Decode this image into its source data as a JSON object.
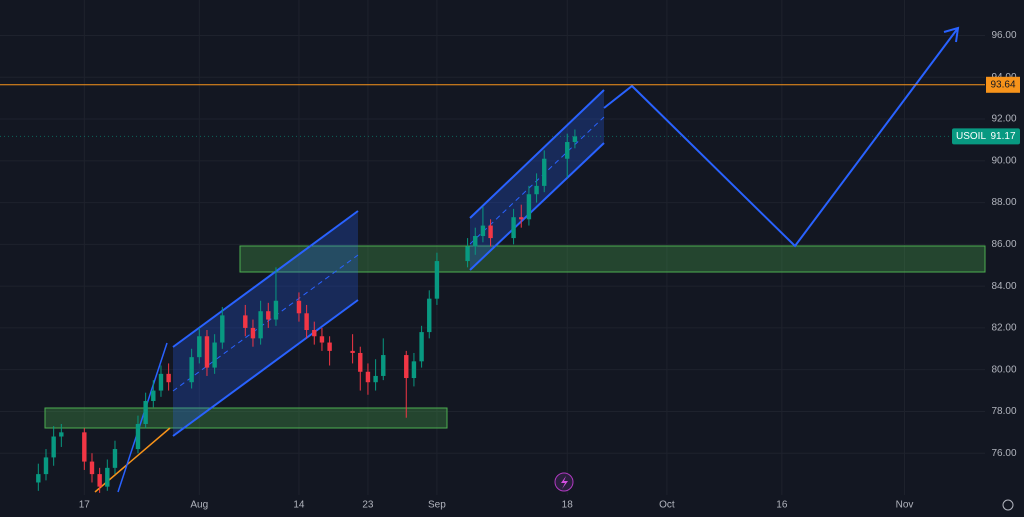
{
  "chart_data": {
    "type": "candlestick",
    "symbol": "USOIL",
    "last_price": 91.17,
    "level": 93.64,
    "x": [
      11,
      12,
      13,
      14,
      17,
      18,
      19,
      20,
      21,
      24,
      25,
      26,
      27,
      28,
      31,
      32,
      33,
      34,
      35,
      38,
      39,
      40,
      41,
      42,
      45,
      46,
      47,
      48,
      49,
      52,
      53,
      54,
      55,
      56,
      59,
      60,
      61,
      62,
      63,
      67,
      68,
      69,
      70,
      73,
      74,
      75,
      76,
      77,
      80,
      81
    ],
    "open": [
      74.6,
      75.0,
      75.8,
      76.8,
      77.0,
      75.6,
      75.0,
      74.4,
      75.3,
      76.2,
      77.4,
      78.5,
      79.0,
      79.8,
      79.4,
      80.6,
      81.6,
      80.1,
      81.3,
      82.6,
      82.0,
      81.5,
      82.8,
      82.4,
      83.3,
      82.7,
      81.9,
      81.6,
      81.3,
      80.9,
      80.8,
      79.9,
      79.4,
      79.7,
      80.7,
      79.6,
      80.4,
      81.8,
      83.4,
      85.2,
      85.9,
      86.4,
      86.9,
      86.3,
      87.3,
      87.2,
      88.4,
      88.8,
      90.1,
      90.9
    ],
    "high": [
      75.5,
      76.2,
      77.3,
      77.4,
      77.2,
      76.0,
      75.3,
      75.7,
      76.6,
      77.8,
      78.9,
      79.5,
      80.2,
      80.3,
      81.0,
      82.0,
      81.9,
      81.7,
      83.0,
      83.1,
      82.4,
      83.3,
      83.2,
      84.9,
      83.7,
      83.1,
      82.3,
      82.0,
      81.6,
      81.7,
      81.1,
      80.3,
      80.5,
      81.5,
      80.9,
      80.8,
      82.1,
      83.8,
      85.6,
      86.3,
      86.8,
      87.8,
      87.2,
      87.7,
      87.9,
      88.8,
      89.4,
      90.5,
      91.3,
      91.5
    ],
    "low": [
      74.2,
      74.7,
      75.4,
      76.3,
      75.2,
      74.6,
      74.1,
      74.2,
      75.0,
      76.0,
      77.2,
      78.2,
      78.7,
      79.0,
      79.1,
      80.3,
      79.7,
      79.8,
      81.0,
      81.6,
      81.1,
      81.2,
      82.0,
      82.1,
      82.3,
      81.5,
      81.2,
      80.9,
      80.2,
      80.3,
      79.0,
      78.8,
      79.0,
      79.5,
      77.7,
      79.2,
      80.1,
      81.5,
      83.1,
      84.9,
      85.5,
      86.1,
      85.9,
      86.0,
      86.8,
      86.9,
      88.0,
      88.5,
      89.2,
      90.6
    ],
    "close": [
      75.0,
      75.8,
      76.8,
      77.0,
      75.6,
      75.0,
      74.4,
      75.3,
      76.2,
      77.4,
      78.5,
      79.0,
      79.8,
      79.4,
      80.6,
      81.6,
      80.1,
      81.3,
      82.6,
      82.0,
      81.5,
      82.8,
      82.4,
      83.3,
      82.7,
      81.9,
      81.6,
      81.3,
      80.9,
      80.8,
      79.9,
      79.4,
      79.7,
      80.7,
      79.6,
      80.4,
      81.8,
      83.4,
      85.2,
      85.9,
      86.4,
      86.9,
      86.3,
      87.3,
      87.2,
      88.4,
      88.8,
      90.1,
      90.9,
      91.17
    ],
    "up_color": "#089981",
    "down_color": "#f23645",
    "level_color": "#f7931a",
    "xlim": [
      6,
      134.5
    ],
    "xticks": [
      {
        "value": 17,
        "label": "17"
      },
      {
        "value": 32,
        "label": "Aug"
      },
      {
        "value": 45,
        "label": "14"
      },
      {
        "value": 54,
        "label": "23"
      },
      {
        "value": 63,
        "label": "Sep"
      },
      {
        "value": 80,
        "label": "18"
      },
      {
        "value": 93,
        "label": "Oct"
      },
      {
        "value": 108,
        "label": "16"
      },
      {
        "value": 124,
        "label": "Nov"
      }
    ],
    "ylim": [
      74.0,
      97.7
    ],
    "yticks": [
      {
        "value": 76,
        "label": "76.00"
      },
      {
        "value": 78,
        "label": "78.00"
      },
      {
        "value": 80,
        "label": "80.00"
      },
      {
        "value": 82,
        "label": "82.00"
      },
      {
        "value": 84,
        "label": "84.00"
      },
      {
        "value": 86,
        "label": "86.00"
      },
      {
        "value": 88,
        "label": "88.00"
      },
      {
        "value": 90,
        "label": "90.00"
      },
      {
        "value": 92,
        "label": "92.00"
      },
      {
        "value": 94,
        "label": "94.00"
      },
      {
        "value": 96,
        "label": "96.00"
      }
    ],
    "grid": true
  }
}
